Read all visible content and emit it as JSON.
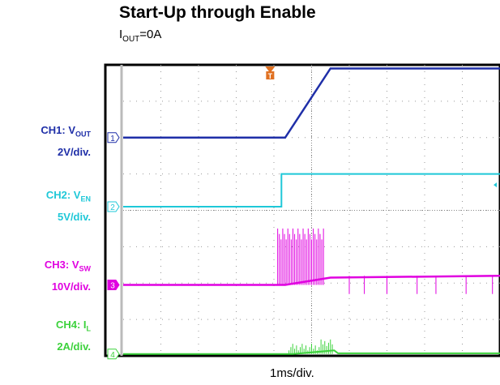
{
  "title": "Start-Up through Enable",
  "subtitle": {
    "main": "I",
    "sub": "OUT",
    "rest": "=0A"
  },
  "channels": [
    {
      "name": "CH1: V",
      "sub": "OUT",
      "scale": "2V/div.",
      "color": "#1f2fa8",
      "marker": "1"
    },
    {
      "name": "CH2: V",
      "sub": "EN",
      "scale": "5V/div.",
      "color": "#1fc8d8",
      "marker": "2"
    },
    {
      "name": "CH3: V",
      "sub": "SW",
      "scale": "10V/div.",
      "color": "#e000e0",
      "marker": "3"
    },
    {
      "name": "CH4: I",
      "sub": "L",
      "scale": "2A/div.",
      "color": "#3cd23c",
      "marker": "4"
    }
  ],
  "trigger_marker": "T",
  "chart_data": {
    "type": "line",
    "xlabel": "1ms/div.",
    "x_divisions": 10,
    "y_divisions": 8,
    "grid": true,
    "series": [
      {
        "name": "CH1: VOUT",
        "x": [
          0,
          4.3,
          5.5,
          10
        ],
        "y": [
          6.0,
          6.0,
          7.9,
          7.9
        ]
      },
      {
        "name": "CH2: VEN",
        "x": [
          0,
          4.2,
          4.2,
          10
        ],
        "y": [
          4.1,
          4.1,
          5.0,
          5.0
        ]
      },
      {
        "name": "CH3: VSW",
        "x": [
          0,
          4.3,
          5.5,
          10
        ],
        "y": [
          1.95,
          1.95,
          2.15,
          2.2
        ]
      },
      {
        "name": "CH4: IL",
        "x": [
          0,
          4.5,
          5.6,
          5.7,
          10
        ],
        "y": [
          0.05,
          0.05,
          0.15,
          0.07,
          0.07
        ]
      }
    ]
  }
}
